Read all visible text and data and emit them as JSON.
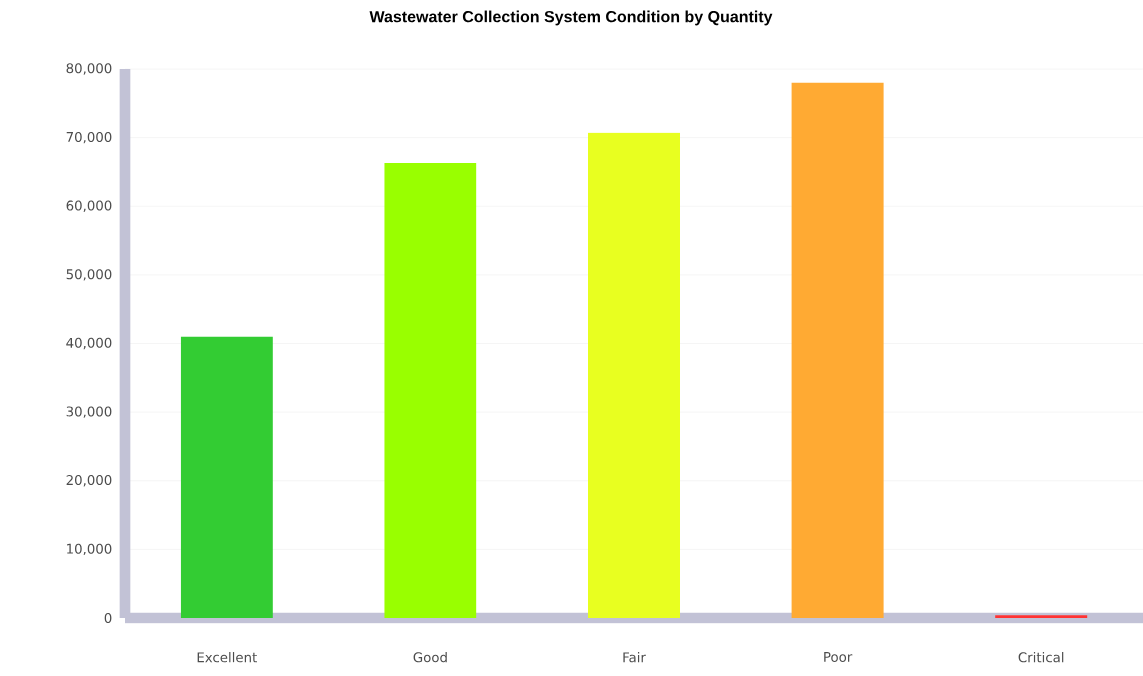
{
  "chart_data": {
    "type": "bar",
    "title": "Wastewater Collection System Condition by Quantity",
    "categories": [
      "Excellent",
      "Good",
      "Fair",
      "Poor",
      "Critical"
    ],
    "values": [
      41000,
      66300,
      70700,
      78000,
      400
    ],
    "colors": [
      "#33cc33",
      "#99ff00",
      "#e8ff20",
      "#ffaa33",
      "#ff3333"
    ],
    "ylim": [
      0,
      80000
    ],
    "yticks": [
      {
        "value": 0,
        "label": "0"
      },
      {
        "value": 10000,
        "label": "10,000"
      },
      {
        "value": 20000,
        "label": "20,000"
      },
      {
        "value": 30000,
        "label": "30,000"
      },
      {
        "value": 40000,
        "label": "40,000"
      },
      {
        "value": 50000,
        "label": "50,000"
      },
      {
        "value": 60000,
        "label": "60,000"
      },
      {
        "value": 70000,
        "label": "70,000"
      },
      {
        "value": 80000,
        "label": "80,000"
      }
    ],
    "grid": "y"
  }
}
